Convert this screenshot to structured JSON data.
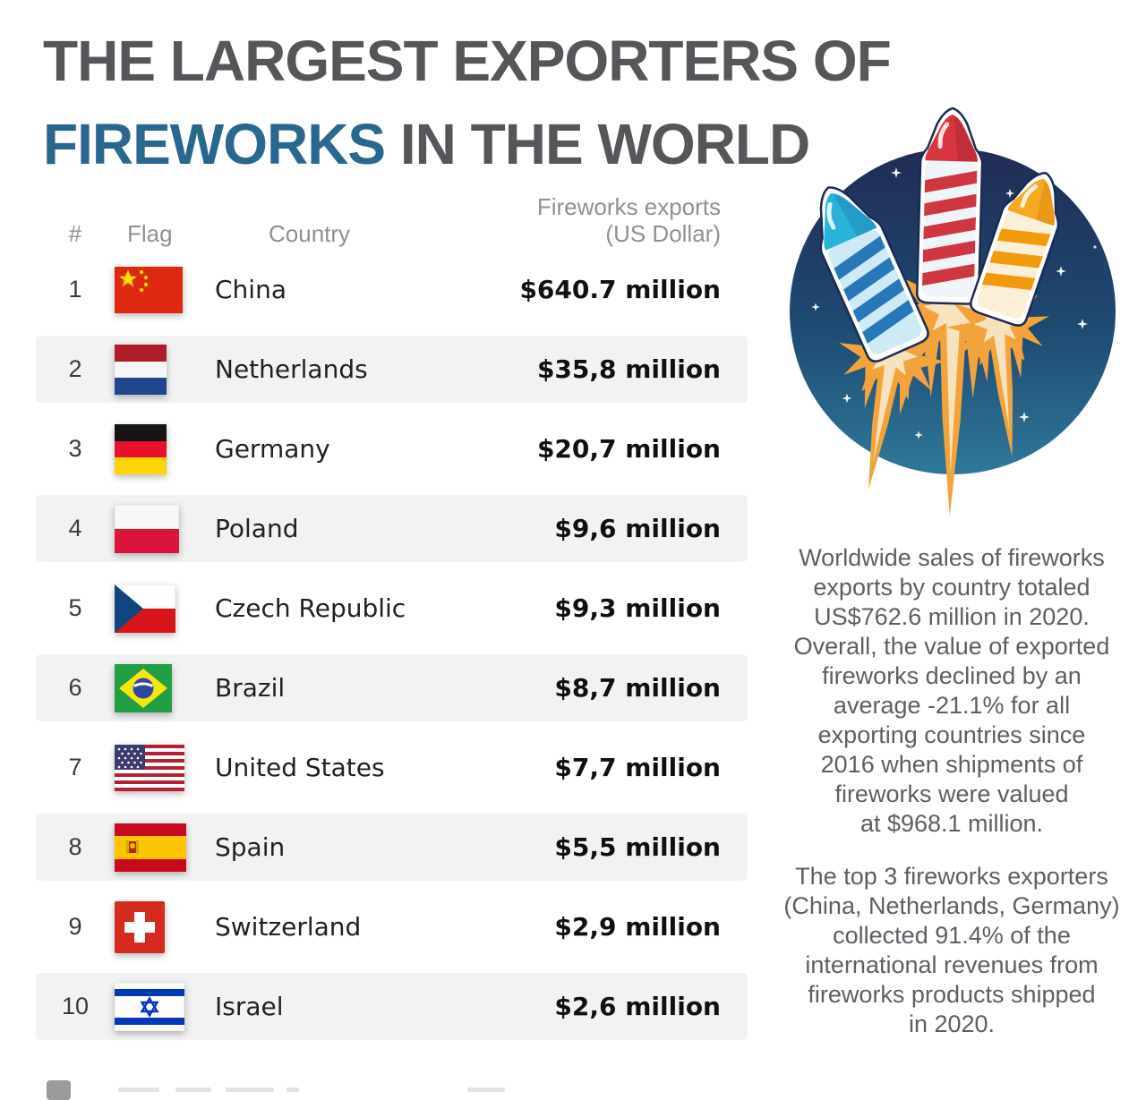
{
  "title": {
    "line1": "THE LARGEST EXPORTERS OF",
    "line2_highlight": "FIREWORKS",
    "line2_rest": " IN THE WORLD"
  },
  "table": {
    "headers": {
      "rank": "#",
      "flag": "Flag",
      "country": "Country",
      "value": "Fireworks exports\n(US Dollar)"
    },
    "rows": [
      {
        "rank": "1",
        "country": "China",
        "value": "$640.7 million",
        "flag": "china"
      },
      {
        "rank": "2",
        "country": "Netherlands",
        "value": "$35,8 million",
        "flag": "netherlands"
      },
      {
        "rank": "3",
        "country": "Germany",
        "value": "$20,7 million",
        "flag": "germany"
      },
      {
        "rank": "4",
        "country": "Poland",
        "value": "$9,6 million",
        "flag": "poland"
      },
      {
        "rank": "5",
        "country": "Czech Republic",
        "value": "$9,3 million",
        "flag": "czech-republic"
      },
      {
        "rank": "6",
        "country": "Brazil",
        "value": "$8,7 million",
        "flag": "brazil"
      },
      {
        "rank": "7",
        "country": "United States",
        "value": "$7,7 million",
        "flag": "united-states"
      },
      {
        "rank": "8",
        "country": "Spain",
        "value": "$5,5 million",
        "flag": "spain"
      },
      {
        "rank": "9",
        "country": "Switzerland",
        "value": "$2,9 million",
        "flag": "switzerland"
      },
      {
        "rank": "10",
        "country": "Israel",
        "value": "$2,6 million",
        "flag": "israel"
      }
    ]
  },
  "sidebar": {
    "paragraph1": "Worldwide sales of fireworks\nexports by country totaled\nUS$762.6 million in 2020.\nOverall, the value of exported\nfireworks declined by an\naverage -21.1% for all\nexporting countries since\n2016 when shipments of\nfireworks were valued\nat $968.1 million.",
    "paragraph2": "The top 3 fireworks exporters\n(China, Netherlands, Germany)\ncollected 91.4% of the\ninternational revenues from\nfireworks products shipped\nin 2020."
  },
  "illustration": {
    "label": "fireworks-rockets",
    "sky_top": "#212C54",
    "sky_mid": "#1E4A72",
    "sky_bottom": "#2F7899",
    "star_color": "#FFFFFF",
    "flame_outer": "#F2A33C",
    "flame_inner": "#F6E2BC",
    "outline": "#1B2B52",
    "rocket_red": {
      "nose": "#D8353F",
      "nose_shade": "#A92833",
      "stripe": "#CE3640",
      "base": "#EEF4F7"
    },
    "rocket_blue": {
      "nose": "#2AB3D9",
      "nose_shade": "#1D86B8",
      "stripe": "#2878B8",
      "base": "#CDEAF6"
    },
    "rocket_orange": {
      "nose": "#F6A821",
      "nose_shade": "#D98A10",
      "stripe": "#F19A0E",
      "base": "#FBEFD8"
    }
  },
  "colors": {
    "title_gray": "#55565A",
    "accent_blue": "#29678F",
    "row_background": "#F2F2F3",
    "header_gray": "#8E9193",
    "paragraph_gray": "#5C6064"
  }
}
